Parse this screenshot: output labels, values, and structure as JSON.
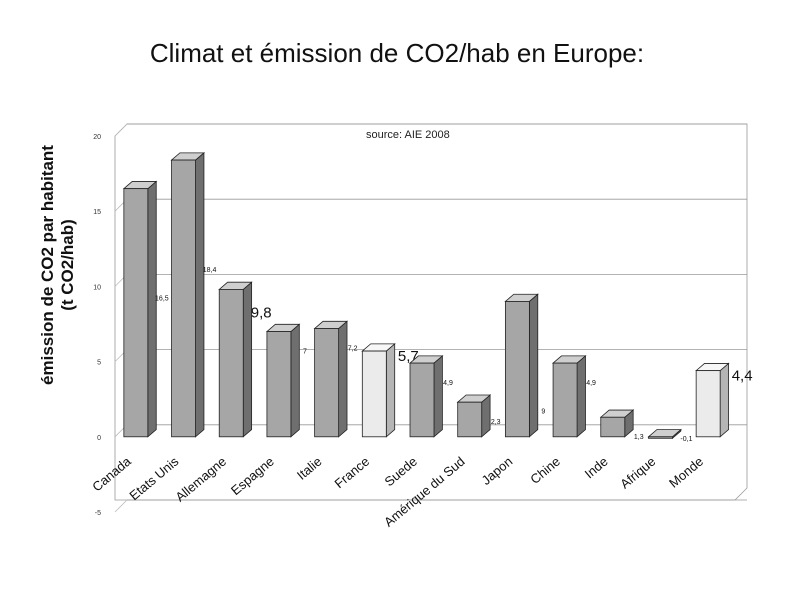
{
  "title": "Climat et émission de CO2/hab en Europe:",
  "ylabel_line1": "émission de CO2 par habitant",
  "ylabel_line2": "(t CO2/hab)",
  "chart_data": {
    "type": "bar",
    "source_note": "source: AIE   2008",
    "categories": [
      "Canada",
      "Etats Unis",
      "Allemagne",
      "Espagne",
      "Italie",
      "France",
      "Suede",
      "Amérique du Sud",
      "Japon",
      "Chine",
      "Inde",
      "Afrique",
      "Monde"
    ],
    "values": [
      16.5,
      18.4,
      9.8,
      7,
      7.2,
      5.7,
      4.9,
      2.3,
      9,
      4.9,
      1.3,
      -0.1,
      4.4
    ],
    "value_labels": [
      "16,5",
      "18,4",
      "9,8",
      "7",
      "7,2",
      "5,7",
      "4,9",
      "2,3",
      "9",
      "4,9",
      "1,3",
      "-0,1",
      "4,4"
    ],
    "highlighted": [
      false,
      false,
      false,
      false,
      false,
      true,
      false,
      false,
      false,
      false,
      false,
      false,
      true
    ],
    "big_labels": [
      false,
      false,
      true,
      false,
      false,
      true,
      false,
      false,
      false,
      false,
      false,
      false,
      true
    ],
    "ylim": [
      -5,
      20
    ],
    "yticks": [
      "-5",
      "0",
      "5",
      "10",
      "15",
      "20"
    ],
    "ytick_values": [
      -5,
      0,
      5,
      10,
      15,
      20
    ],
    "grid": true,
    "colors": {
      "bar": "#a6a6a6",
      "bar_side": "#6f6f6f",
      "bar_top": "#cfcfcf",
      "highlight": "#ebebeb",
      "highlight_side": "#b5b5b5",
      "highlight_top": "#f7f7f7"
    }
  }
}
